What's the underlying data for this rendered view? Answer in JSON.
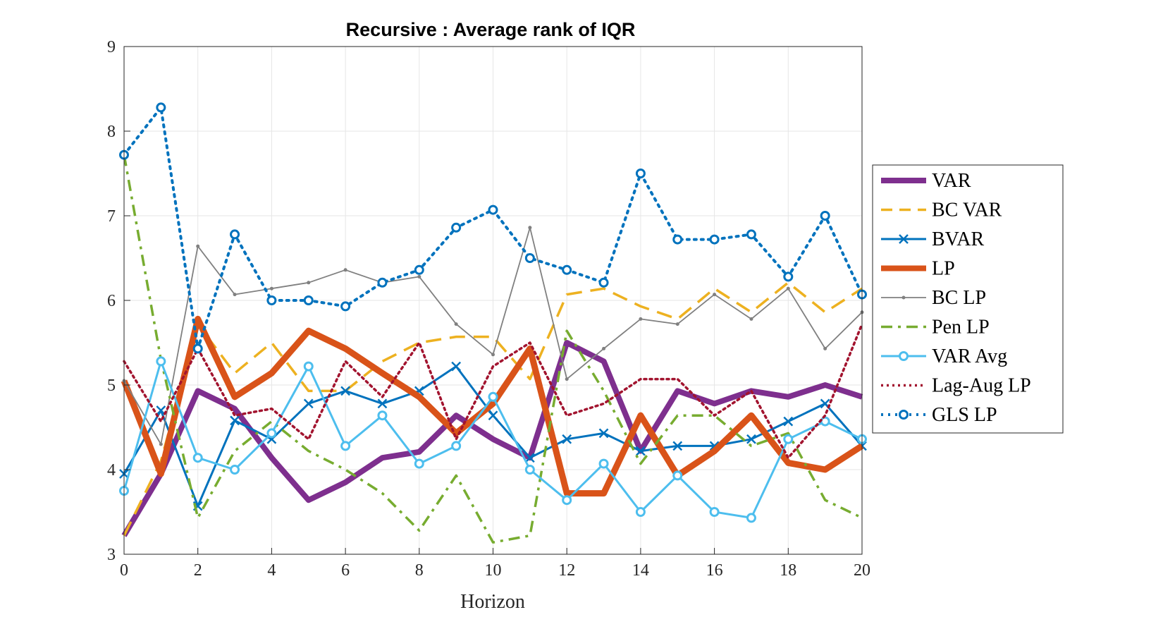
{
  "chart_data": {
    "type": "line",
    "title": "Recursive : Average rank of IQR",
    "xlabel": "Horizon",
    "ylabel": "",
    "xlim": [
      0,
      20
    ],
    "ylim": [
      3,
      9
    ],
    "xticks": [
      0,
      2,
      4,
      6,
      8,
      10,
      12,
      14,
      16,
      18,
      20
    ],
    "yticks": [
      3,
      4,
      5,
      6,
      7,
      8,
      9
    ],
    "grid": true,
    "legend_position": "right",
    "x": [
      0,
      1,
      2,
      3,
      4,
      5,
      6,
      7,
      8,
      9,
      10,
      11,
      12,
      13,
      14,
      15,
      16,
      17,
      18,
      19,
      20
    ],
    "series": [
      {
        "name": "VAR",
        "color": "#7E2F8E",
        "style": "solid-thick",
        "values": [
          3.22,
          3.95,
          4.93,
          4.72,
          4.14,
          3.64,
          3.85,
          4.14,
          4.21,
          4.64,
          4.36,
          4.14,
          5.5,
          5.28,
          4.22,
          4.93,
          4.78,
          4.93,
          4.86,
          5.0,
          4.86
        ]
      },
      {
        "name": "BC VAR",
        "color": "#EDB120",
        "style": "dashed",
        "values": [
          3.22,
          4.1,
          5.72,
          5.14,
          5.5,
          4.93,
          4.93,
          5.28,
          5.5,
          5.57,
          5.57,
          5.07,
          6.07,
          6.14,
          5.93,
          5.78,
          6.14,
          5.86,
          6.21,
          5.86,
          6.14
        ]
      },
      {
        "name": "BVAR",
        "color": "#0072BD",
        "style": "solid-x",
        "values": [
          3.95,
          4.7,
          3.57,
          4.58,
          4.36,
          4.78,
          4.93,
          4.78,
          4.93,
          5.22,
          4.64,
          4.14,
          4.36,
          4.43,
          4.22,
          4.28,
          4.28,
          4.36,
          4.57,
          4.78,
          4.28
        ]
      },
      {
        "name": "LP",
        "color": "#D95319",
        "style": "solid-thicker",
        "values": [
          5.05,
          3.95,
          5.78,
          4.86,
          5.14,
          5.64,
          5.43,
          5.14,
          4.86,
          4.43,
          4.78,
          5.43,
          3.72,
          3.72,
          4.64,
          3.93,
          4.22,
          4.64,
          4.08,
          4.0,
          4.28
        ]
      },
      {
        "name": "BC LP",
        "color": "#808080",
        "style": "solid-dot",
        "values": [
          5.05,
          4.3,
          6.64,
          6.07,
          6.14,
          6.21,
          6.36,
          6.21,
          6.28,
          5.72,
          5.36,
          6.86,
          5.07,
          5.43,
          5.78,
          5.72,
          6.07,
          5.78,
          6.14,
          5.43,
          5.86
        ]
      },
      {
        "name": "Pen LP",
        "color": "#77AC30",
        "style": "dashdot",
        "values": [
          7.72,
          5.3,
          3.43,
          4.22,
          4.57,
          4.22,
          4.0,
          3.72,
          3.28,
          3.93,
          3.14,
          3.22,
          5.64,
          4.93,
          4.07,
          4.64,
          4.64,
          4.28,
          4.43,
          3.64,
          3.43
        ]
      },
      {
        "name": "VAR Avg",
        "color": "#4DBEEE",
        "style": "solid-circle",
        "values": [
          3.75,
          5.28,
          4.14,
          4.0,
          4.43,
          5.22,
          4.28,
          4.64,
          4.07,
          4.28,
          4.86,
          4.0,
          3.64,
          4.07,
          3.5,
          3.93,
          3.5,
          3.43,
          4.36,
          4.57,
          4.36
        ]
      },
      {
        "name": "Lag-Aug LP",
        "color": "#A2142F",
        "style": "dotted",
        "values": [
          5.28,
          4.57,
          5.43,
          4.64,
          4.72,
          4.36,
          5.28,
          4.86,
          5.5,
          4.36,
          5.22,
          5.5,
          4.64,
          4.78,
          5.07,
          5.07,
          4.64,
          4.93,
          4.14,
          4.64,
          5.72
        ]
      },
      {
        "name": "GLS LP",
        "color": "#0072BD",
        "style": "dotted-circle",
        "values": [
          7.72,
          8.28,
          5.43,
          6.78,
          6.0,
          6.0,
          5.93,
          6.21,
          6.36,
          6.86,
          7.07,
          6.5,
          6.36,
          6.21,
          7.5,
          6.72,
          6.72,
          6.78,
          6.28,
          7.0,
          6.07
        ]
      }
    ]
  }
}
